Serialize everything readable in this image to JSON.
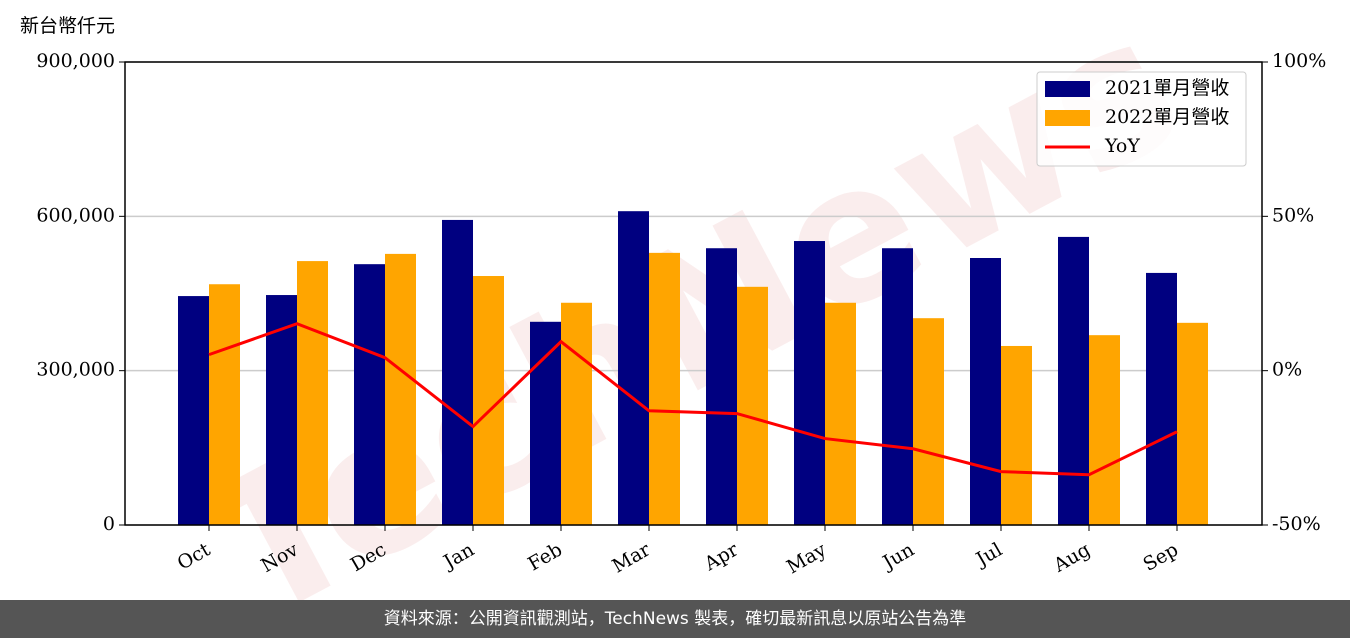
{
  "chart_data": {
    "type": "bar-line",
    "unit_label": "新台幣仟元",
    "watermark": "TechNews",
    "categories": [
      "Oct",
      "Nov",
      "Dec",
      "Jan",
      "Feb",
      "Mar",
      "Apr",
      "May",
      "Jun",
      "Jul",
      "Aug",
      "Sep"
    ],
    "series": [
      {
        "name": "2021單月營收",
        "color": "#000080",
        "type": "bar",
        "values": [
          445000,
          447000,
          507000,
          593000,
          395000,
          610000,
          538000,
          552000,
          538000,
          519000,
          560000,
          490000
        ]
      },
      {
        "name": "2022單月營收",
        "color": "#ffa500",
        "type": "bar",
        "values": [
          468000,
          513000,
          527000,
          484000,
          432000,
          529000,
          463000,
          432000,
          402000,
          348000,
          369000,
          393000
        ]
      },
      {
        "name": "YoY",
        "color": "#ff0000",
        "type": "line",
        "axis": "y2",
        "values": [
          5.2,
          15.2,
          4.2,
          -18.1,
          9.4,
          -13.0,
          -13.9,
          -22.0,
          -25.3,
          -32.7,
          -33.7,
          -19.8
        ]
      }
    ],
    "ylim": [
      0,
      900000
    ],
    "yticks": [
      0,
      {
        "value": 300000,
        "label": "300,000"
      },
      {
        "value": 600000,
        "label": "600,000"
      },
      {
        "value": 900000,
        "label": "900,000"
      }
    ],
    "y2lim": [
      -50,
      100
    ],
    "y2ticks": [
      {
        "value": -50,
        "label": "-50%"
      },
      {
        "value": 0,
        "label": "0%"
      },
      {
        "value": 50,
        "label": "50%"
      },
      {
        "value": 100,
        "label": "100%"
      }
    ],
    "grid": true,
    "legend": "upper right"
  },
  "footer": "資料來源：公開資訊觀測站，TechNews 製表，確切最新訊息以原站公告為準"
}
